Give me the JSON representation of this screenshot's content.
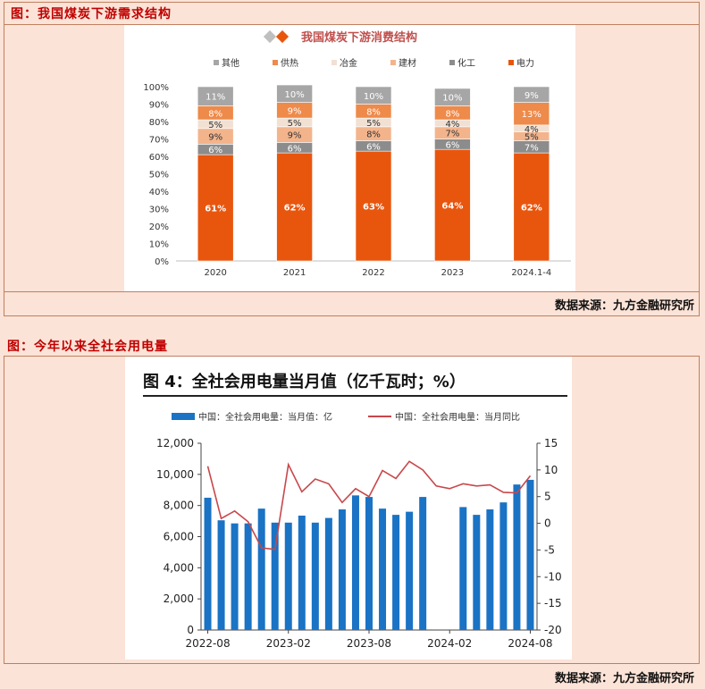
{
  "figure1": {
    "caption": "图：我国煤炭下游需求结构",
    "source": "数据来源：九方金融研究所",
    "colors": {
      "其他": "#a6a6a6",
      "供热": "#ee8a4a",
      "冶金": "#f2e0d2",
      "建材": "#f3b48c",
      "化工": "#8c8c8c",
      "电力": "#e8560e"
    },
    "chart_data": {
      "type": "bar",
      "stacked": true,
      "title": "我国煤炭下游消费结构",
      "categories": [
        "2020",
        "2021",
        "2022",
        "2023",
        "2024.1-4"
      ],
      "ylim": [
        0,
        100
      ],
      "yticks": [
        "0%",
        "10%",
        "20%",
        "30%",
        "40%",
        "50%",
        "60%",
        "70%",
        "80%",
        "90%",
        "100%"
      ],
      "legend": [
        "其他",
        "供热",
        "冶金",
        "建材",
        "化工",
        "电力"
      ],
      "legend_position": "top",
      "series": [
        {
          "name": "电力",
          "values": [
            61,
            62,
            63,
            64,
            62
          ],
          "labels": [
            "61%",
            "62%",
            "63%",
            "64%",
            "62%"
          ]
        },
        {
          "name": "化工",
          "values": [
            6,
            6,
            6,
            6,
            7
          ],
          "labels": [
            "6%",
            "6%",
            "6%",
            "6%",
            "7%"
          ]
        },
        {
          "name": "建材",
          "values": [
            9,
            9,
            8,
            7,
            5
          ],
          "labels": [
            "9%",
            "9%",
            "8%",
            "7%",
            "5%"
          ]
        },
        {
          "name": "冶金",
          "values": [
            5,
            5,
            5,
            4,
            4
          ],
          "labels": [
            "5%",
            "5%",
            "5%",
            "4%",
            "4%"
          ]
        },
        {
          "name": "供热",
          "values": [
            8,
            9,
            8,
            8,
            13
          ],
          "labels": [
            "8%",
            "9%",
            "8%",
            "8%",
            "13%"
          ]
        },
        {
          "name": "其他",
          "values": [
            11,
            10,
            10,
            10,
            9
          ],
          "labels": [
            "11%",
            "10%",
            "10%",
            "10%",
            "9%"
          ]
        }
      ]
    }
  },
  "figure2": {
    "caption": "图：今年以来全社会用电量",
    "source": "数据来源：九方金融研究所",
    "colors": {
      "bar": "#1a73c4",
      "line": "#c8474b"
    },
    "chart_data": {
      "type": "bar+line",
      "title": "图 4：全社会用电量当月值（亿千瓦时；%）",
      "legend": [
        "中国：全社会用电量：当月值：亿",
        "中国：全社会用电量：当月同比"
      ],
      "legend_position": "top",
      "x": [
        "2022-08",
        "2022-09",
        "2022-10",
        "2022-11",
        "2022-12",
        "2023-01",
        "2023-02",
        "2023-03",
        "2023-04",
        "2023-05",
        "2023-06",
        "2023-07",
        "2023-08",
        "2023-09",
        "2023-10",
        "2023-11",
        "2023-12",
        "2024-01",
        "2024-02",
        "2024-03",
        "2024-04",
        "2024-05",
        "2024-06",
        "2024-07",
        "2024-08"
      ],
      "xticks": [
        "2022-08",
        "2023-02",
        "2023-08",
        "2024-02",
        "2024-08"
      ],
      "left_axis": {
        "ylim": [
          0,
          12000
        ],
        "ticks": [
          "0",
          "2,000",
          "4,000",
          "6,000",
          "8,000",
          "10,000",
          "12,000"
        ]
      },
      "right_axis": {
        "ylim": [
          -20,
          15
        ],
        "ticks": [
          "-20",
          "-15",
          "-10",
          "-5",
          "0",
          "5",
          "10",
          "15"
        ]
      },
      "series": [
        {
          "name": "中国：全社会用电量：当月值：亿",
          "type": "bar",
          "axis": "left",
          "values": [
            8500,
            7050,
            6850,
            6850,
            7800,
            6900,
            6900,
            7350,
            6900,
            7200,
            7750,
            8650,
            8550,
            7800,
            7400,
            7600,
            8550,
            null,
            null,
            7900,
            7400,
            7750,
            8200,
            9350,
            9650
          ]
        },
        {
          "name": "中国：全社会用电量：当月同比",
          "type": "line",
          "axis": "right",
          "values": [
            10.7,
            0.9,
            2.3,
            0.3,
            -4.6,
            -4.9,
            11.0,
            5.9,
            8.3,
            7.4,
            3.9,
            6.5,
            5.0,
            9.9,
            8.4,
            11.6,
            10.0,
            7.0,
            6.5,
            7.4,
            7.0,
            7.2,
            5.8,
            5.7,
            8.9
          ]
        }
      ]
    }
  }
}
